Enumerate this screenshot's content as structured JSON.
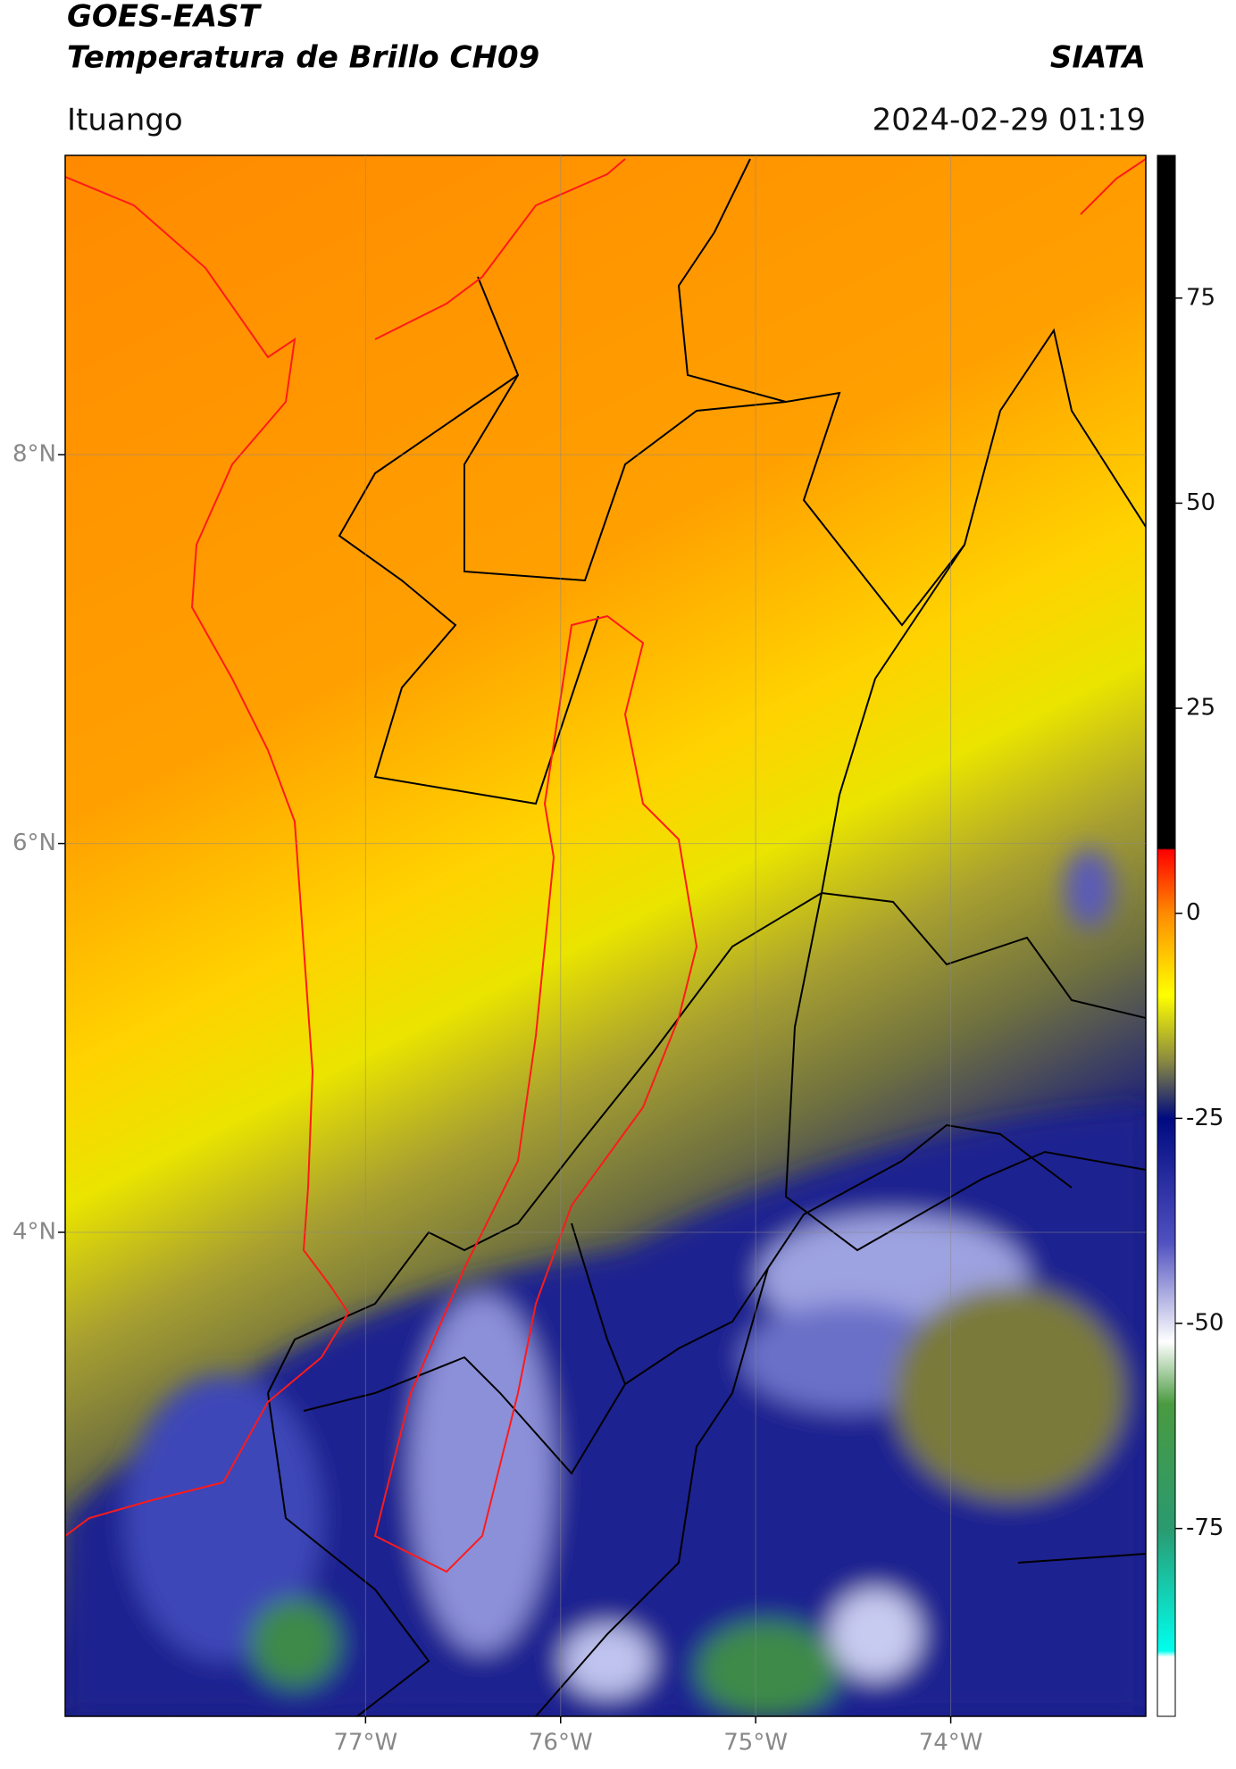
{
  "header": {
    "title": "GOES-EAST",
    "subtitle": "Temperatura de Brillo CH09",
    "source": "SIATA",
    "location": "Ituango",
    "datetime": "2024-02-29 01:19"
  },
  "map": {
    "xlim": [
      -78.54,
      -73.0
    ],
    "ylim": [
      1.51,
      9.54
    ],
    "xticks": [
      {
        "value": -77,
        "label": "77°W"
      },
      {
        "value": -76,
        "label": "76°W"
      },
      {
        "value": -75,
        "label": "75°W"
      },
      {
        "value": -74,
        "label": "74°W"
      }
    ],
    "yticks": [
      {
        "value": 8,
        "label": "8°N"
      },
      {
        "value": 6,
        "label": "6°N"
      },
      {
        "value": 4,
        "label": "4°N"
      }
    ],
    "grid": true
  },
  "colorbar": {
    "lim": [
      -97.9,
      92.4
    ],
    "ticks": [
      75,
      50,
      25,
      0,
      -25,
      -50,
      -75
    ]
  }
}
